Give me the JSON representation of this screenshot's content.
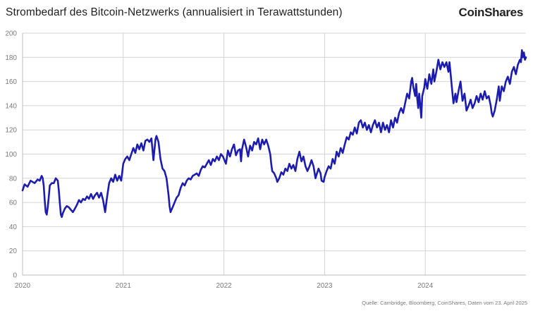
{
  "header": {
    "title": "Strombedarf des Bitcoin-Netzwerks (annualisiert in Terawattstunden)",
    "brand": "CoinShares"
  },
  "footer": {
    "source": "Quelle: Cambridge, Bloomberg, CoinShares,  Daten vom 23. April 2025"
  },
  "colors": {
    "line": "#1c1cb0",
    "grid": "#d4d4d4",
    "tick_text": "#7a7a7a"
  },
  "chart_data": {
    "type": "line",
    "title": "Strombedarf des Bitcoin-Netzwerks (annualisiert in Terawattstunden)",
    "xlabel": "",
    "ylabel": "",
    "ylim": [
      0,
      200
    ],
    "yticks": [
      0,
      20,
      40,
      60,
      80,
      100,
      120,
      140,
      160,
      180,
      200
    ],
    "xlim": [
      2020.0,
      2025.0
    ],
    "xticks": [
      {
        "value": 2020,
        "label": "2020"
      },
      {
        "value": 2021,
        "label": "2021"
      },
      {
        "value": 2022,
        "label": "2022"
      },
      {
        "value": 2023,
        "label": "2023"
      },
      {
        "value": 2024,
        "label": "2024"
      }
    ],
    "grid": true,
    "series": [
      {
        "points": [
          [
            2020.0,
            70
          ],
          [
            2020.02,
            75
          ],
          [
            2020.05,
            73
          ],
          [
            2020.08,
            78
          ],
          [
            2020.12,
            76
          ],
          [
            2020.15,
            79
          ],
          [
            2020.17,
            78
          ],
          [
            2020.19,
            82
          ],
          [
            2020.2,
            80
          ],
          [
            2020.21,
            74
          ],
          [
            2020.22,
            62
          ],
          [
            2020.23,
            52
          ],
          [
            2020.24,
            50
          ],
          [
            2020.25,
            56
          ],
          [
            2020.26,
            64
          ],
          [
            2020.27,
            74
          ],
          [
            2020.29,
            76
          ],
          [
            2020.31,
            76
          ],
          [
            2020.33,
            80
          ],
          [
            2020.35,
            78
          ],
          [
            2020.36,
            70
          ],
          [
            2020.37,
            60
          ],
          [
            2020.38,
            50
          ],
          [
            2020.39,
            48
          ],
          [
            2020.4,
            51
          ],
          [
            2020.42,
            55
          ],
          [
            2020.44,
            57
          ],
          [
            2020.46,
            56
          ],
          [
            2020.48,
            54
          ],
          [
            2020.5,
            52
          ],
          [
            2020.52,
            55
          ],
          [
            2020.54,
            58
          ],
          [
            2020.56,
            62
          ],
          [
            2020.58,
            60
          ],
          [
            2020.6,
            63
          ],
          [
            2020.62,
            62
          ],
          [
            2020.64,
            65
          ],
          [
            2020.66,
            63
          ],
          [
            2020.68,
            67
          ],
          [
            2020.7,
            63
          ],
          [
            2020.72,
            66
          ],
          [
            2020.74,
            68
          ],
          [
            2020.76,
            64
          ],
          [
            2020.78,
            68
          ],
          [
            2020.8,
            62
          ],
          [
            2020.82,
            52
          ],
          [
            2020.84,
            65
          ],
          [
            2020.86,
            76
          ],
          [
            2020.88,
            80
          ],
          [
            2020.9,
            77
          ],
          [
            2020.92,
            83
          ],
          [
            2020.94,
            78
          ],
          [
            2020.96,
            82
          ],
          [
            2020.98,
            78
          ],
          [
            2021.0,
            92
          ],
          [
            2021.02,
            96
          ],
          [
            2021.04,
            98
          ],
          [
            2021.06,
            95
          ],
          [
            2021.08,
            100
          ],
          [
            2021.1,
            105
          ],
          [
            2021.12,
            101
          ],
          [
            2021.14,
            108
          ],
          [
            2021.16,
            104
          ],
          [
            2021.18,
            109
          ],
          [
            2021.2,
            103
          ],
          [
            2021.22,
            111
          ],
          [
            2021.24,
            112
          ],
          [
            2021.26,
            110
          ],
          [
            2021.28,
            113
          ],
          [
            2021.3,
            95
          ],
          [
            2021.32,
            112
          ],
          [
            2021.33,
            115
          ],
          [
            2021.35,
            110
          ],
          [
            2021.37,
            96
          ],
          [
            2021.39,
            88
          ],
          [
            2021.41,
            86
          ],
          [
            2021.43,
            80
          ],
          [
            2021.45,
            66
          ],
          [
            2021.46,
            57
          ],
          [
            2021.47,
            52
          ],
          [
            2021.49,
            56
          ],
          [
            2021.51,
            60
          ],
          [
            2021.53,
            64
          ],
          [
            2021.55,
            66
          ],
          [
            2021.57,
            72
          ],
          [
            2021.59,
            76
          ],
          [
            2021.61,
            74
          ],
          [
            2021.63,
            78
          ],
          [
            2021.65,
            80
          ],
          [
            2021.67,
            79
          ],
          [
            2021.69,
            82
          ],
          [
            2021.71,
            83
          ],
          [
            2021.73,
            84
          ],
          [
            2021.75,
            82
          ],
          [
            2021.77,
            87
          ],
          [
            2021.79,
            90
          ],
          [
            2021.81,
            89
          ],
          [
            2021.83,
            92
          ],
          [
            2021.85,
            95
          ],
          [
            2021.87,
            91
          ],
          [
            2021.89,
            96
          ],
          [
            2021.91,
            94
          ],
          [
            2021.93,
            98
          ],
          [
            2021.95,
            95
          ],
          [
            2021.97,
            100
          ],
          [
            2021.99,
            98
          ],
          [
            2022.0,
            96
          ],
          [
            2022.02,
            92
          ],
          [
            2022.04,
            103
          ],
          [
            2022.06,
            98
          ],
          [
            2022.08,
            104
          ],
          [
            2022.1,
            108
          ],
          [
            2022.12,
            99
          ],
          [
            2022.14,
            103
          ],
          [
            2022.16,
            104
          ],
          [
            2022.17,
            94
          ],
          [
            2022.18,
            104
          ],
          [
            2022.2,
            112
          ],
          [
            2022.22,
            106
          ],
          [
            2022.24,
            98
          ],
          [
            2022.26,
            107
          ],
          [
            2022.28,
            103
          ],
          [
            2022.3,
            110
          ],
          [
            2022.32,
            108
          ],
          [
            2022.34,
            113
          ],
          [
            2022.36,
            104
          ],
          [
            2022.38,
            112
          ],
          [
            2022.4,
            108
          ],
          [
            2022.42,
            112
          ],
          [
            2022.44,
            107
          ],
          [
            2022.46,
            100
          ],
          [
            2022.47,
            92
          ],
          [
            2022.48,
            86
          ],
          [
            2022.5,
            84
          ],
          [
            2022.52,
            80
          ],
          [
            2022.53,
            77
          ],
          [
            2022.55,
            80
          ],
          [
            2022.57,
            85
          ],
          [
            2022.59,
            83
          ],
          [
            2022.61,
            88
          ],
          [
            2022.63,
            86
          ],
          [
            2022.65,
            92
          ],
          [
            2022.67,
            88
          ],
          [
            2022.69,
            91
          ],
          [
            2022.71,
            86
          ],
          [
            2022.73,
            96
          ],
          [
            2022.75,
            102
          ],
          [
            2022.77,
            94
          ],
          [
            2022.79,
            98
          ],
          [
            2022.81,
            90
          ],
          [
            2022.83,
            86
          ],
          [
            2022.85,
            90
          ],
          [
            2022.87,
            95
          ],
          [
            2022.89,
            90
          ],
          [
            2022.91,
            80
          ],
          [
            2022.92,
            83
          ],
          [
            2022.94,
            88
          ],
          [
            2022.96,
            84
          ],
          [
            2022.97,
            78
          ],
          [
            2022.99,
            77
          ],
          [
            2023.0,
            81
          ],
          [
            2023.02,
            86
          ],
          [
            2023.04,
            90
          ],
          [
            2023.06,
            88
          ],
          [
            2023.08,
            96
          ],
          [
            2023.1,
            92
          ],
          [
            2023.12,
            102
          ],
          [
            2023.14,
            98
          ],
          [
            2023.16,
            105
          ],
          [
            2023.18,
            101
          ],
          [
            2023.2,
            108
          ],
          [
            2023.22,
            114
          ],
          [
            2023.24,
            112
          ],
          [
            2023.26,
            118
          ],
          [
            2023.28,
            116
          ],
          [
            2023.3,
            122
          ],
          [
            2023.32,
            117
          ],
          [
            2023.34,
            126
          ],
          [
            2023.36,
            128
          ],
          [
            2023.38,
            122
          ],
          [
            2023.4,
            126
          ],
          [
            2023.42,
            120
          ],
          [
            2023.44,
            124
          ],
          [
            2023.46,
            118
          ],
          [
            2023.48,
            124
          ],
          [
            2023.5,
            128
          ],
          [
            2023.52,
            122
          ],
          [
            2023.54,
            126
          ],
          [
            2023.56,
            118
          ],
          [
            2023.58,
            126
          ],
          [
            2023.6,
            120
          ],
          [
            2023.62,
            124
          ],
          [
            2023.64,
            118
          ],
          [
            2023.66,
            128
          ],
          [
            2023.68,
            122
          ],
          [
            2023.7,
            130
          ],
          [
            2023.72,
            126
          ],
          [
            2023.74,
            134
          ],
          [
            2023.76,
            138
          ],
          [
            2023.78,
            134
          ],
          [
            2023.8,
            142
          ],
          [
            2023.82,
            150
          ],
          [
            2023.84,
            146
          ],
          [
            2023.86,
            160
          ],
          [
            2023.87,
            163
          ],
          [
            2023.88,
            156
          ],
          [
            2023.9,
            148
          ],
          [
            2023.91,
            158
          ],
          [
            2023.92,
            146
          ],
          [
            2023.93,
            138
          ],
          [
            2023.94,
            150
          ],
          [
            2023.95,
            140
          ],
          [
            2023.96,
            130
          ],
          [
            2023.97,
            148
          ],
          [
            2023.99,
            155
          ],
          [
            2024.0,
            162
          ],
          [
            2024.02,
            154
          ],
          [
            2024.04,
            166
          ],
          [
            2024.06,
            158
          ],
          [
            2024.08,
            170
          ],
          [
            2024.09,
            160
          ],
          [
            2024.11,
            168
          ],
          [
            2024.13,
            178
          ],
          [
            2024.15,
            170
          ],
          [
            2024.17,
            176
          ],
          [
            2024.19,
            172
          ],
          [
            2024.21,
            176
          ],
          [
            2024.23,
            168
          ],
          [
            2024.24,
            176
          ],
          [
            2024.25,
            168
          ],
          [
            2024.27,
            150
          ],
          [
            2024.28,
            142
          ],
          [
            2024.3,
            150
          ],
          [
            2024.31,
            143
          ],
          [
            2024.33,
            152
          ],
          [
            2024.35,
            160
          ],
          [
            2024.37,
            144
          ],
          [
            2024.39,
            150
          ],
          [
            2024.41,
            136
          ],
          [
            2024.43,
            140
          ],
          [
            2024.45,
            145
          ],
          [
            2024.47,
            138
          ],
          [
            2024.49,
            142
          ],
          [
            2024.51,
            148
          ],
          [
            2024.53,
            143
          ],
          [
            2024.55,
            150
          ],
          [
            2024.57,
            145
          ],
          [
            2024.59,
            152
          ],
          [
            2024.61,
            146
          ],
          [
            2024.63,
            148
          ],
          [
            2024.65,
            140
          ],
          [
            2024.66,
            134
          ],
          [
            2024.67,
            131
          ],
          [
            2024.69,
            136
          ],
          [
            2024.71,
            145
          ],
          [
            2024.73,
            156
          ],
          [
            2024.74,
            144
          ],
          [
            2024.76,
            156
          ],
          [
            2024.78,
            152
          ],
          [
            2024.8,
            160
          ],
          [
            2024.82,
            164
          ],
          [
            2024.84,
            158
          ],
          [
            2024.86,
            168
          ],
          [
            2024.88,
            172
          ],
          [
            2024.9,
            166
          ],
          [
            2024.92,
            174
          ],
          [
            2024.94,
            178
          ],
          [
            2024.95,
            176
          ],
          [
            2024.96,
            186
          ],
          [
            2024.97,
            180
          ],
          [
            2024.98,
            184
          ],
          [
            2024.99,
            178
          ],
          [
            2025.0,
            180
          ]
        ]
      }
    ]
  }
}
